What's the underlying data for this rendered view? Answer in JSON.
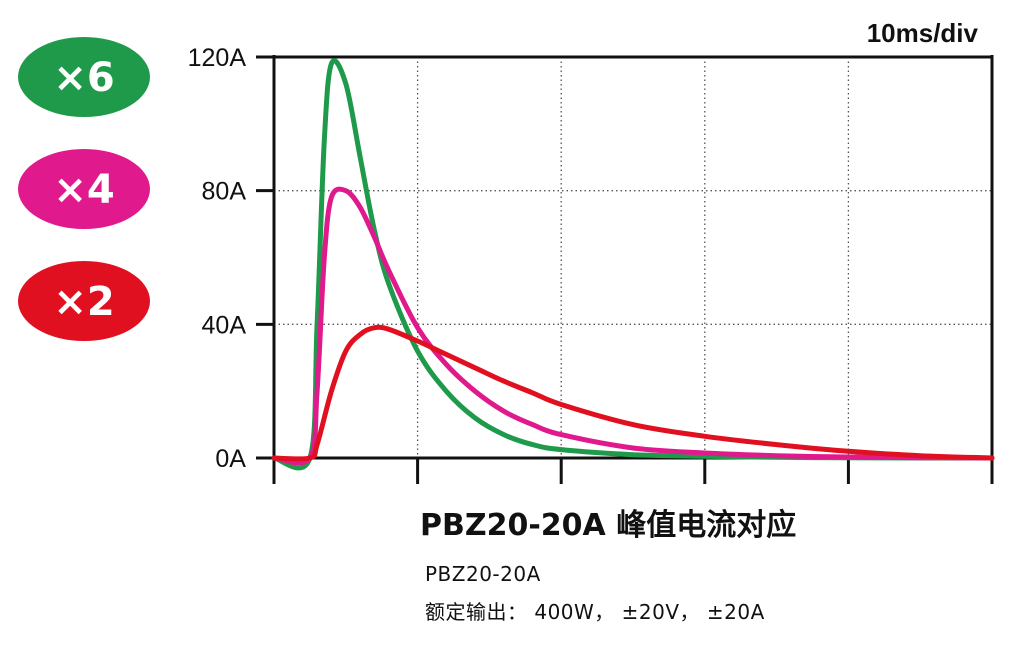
{
  "badges": [
    {
      "label": "×6",
      "color": "#1e9a4a"
    },
    {
      "label": "×4",
      "color": "#e01a8c"
    },
    {
      "label": "×2",
      "color": "#e01020"
    }
  ],
  "scale_label": "10ms/div",
  "caption": {
    "title": "PBZ20-20A 峰值电流对应",
    "model": "PBZ20-20A",
    "rating": "额定输出： 400W， ±20V， ±20A"
  },
  "chart_data": {
    "type": "line",
    "title": "PBZ20-20A 峰值电流对应",
    "xlabel": "",
    "ylabel": "",
    "x_unit": "ms",
    "xlim": [
      0,
      50
    ],
    "ylim": [
      0,
      120
    ],
    "grid": true,
    "yticks": [
      "0A",
      "40A",
      "80A",
      "120A"
    ],
    "yticks_values": [
      0,
      40,
      80,
      120
    ],
    "x_division_ms": 10,
    "series": [
      {
        "name": "×6",
        "color": "#1e9a4a",
        "x": [
          0,
          2.5,
          3.0,
          3.5,
          4.0,
          5.0,
          6.0,
          7.0,
          8.0,
          10,
          12,
          14,
          16,
          18,
          20,
          25,
          30,
          35,
          40,
          45,
          50
        ],
        "y": [
          0,
          0,
          40,
          95,
          118,
          112,
          90,
          68,
          52,
          32,
          20,
          12,
          7,
          4,
          2.5,
          1,
          0.5,
          0.2,
          0.1,
          0,
          0
        ]
      },
      {
        "name": "×4",
        "color": "#e01a8c",
        "x": [
          0,
          2.5,
          3.0,
          3.5,
          4.0,
          5.0,
          6.0,
          7.0,
          8.0,
          10,
          12,
          14,
          16,
          18,
          20,
          25,
          30,
          35,
          40,
          45,
          50
        ],
        "y": [
          0,
          0,
          20,
          60,
          78,
          80,
          75,
          66,
          56,
          39,
          28,
          20,
          14,
          10,
          7,
          3,
          1.5,
          0.7,
          0.3,
          0.1,
          0
        ]
      },
      {
        "name": "×2",
        "color": "#e01020",
        "x": [
          0,
          2.5,
          3.0,
          4.0,
          5.0,
          6.0,
          7.0,
          8.0,
          10,
          12,
          14,
          16,
          18,
          20,
          25,
          30,
          35,
          40,
          45,
          50
        ],
        "y": [
          0,
          0,
          4,
          20,
          32,
          37,
          39,
          38.5,
          35,
          31,
          27,
          23,
          19.5,
          16,
          10,
          6.5,
          4,
          2,
          0.7,
          0
        ]
      }
    ]
  }
}
